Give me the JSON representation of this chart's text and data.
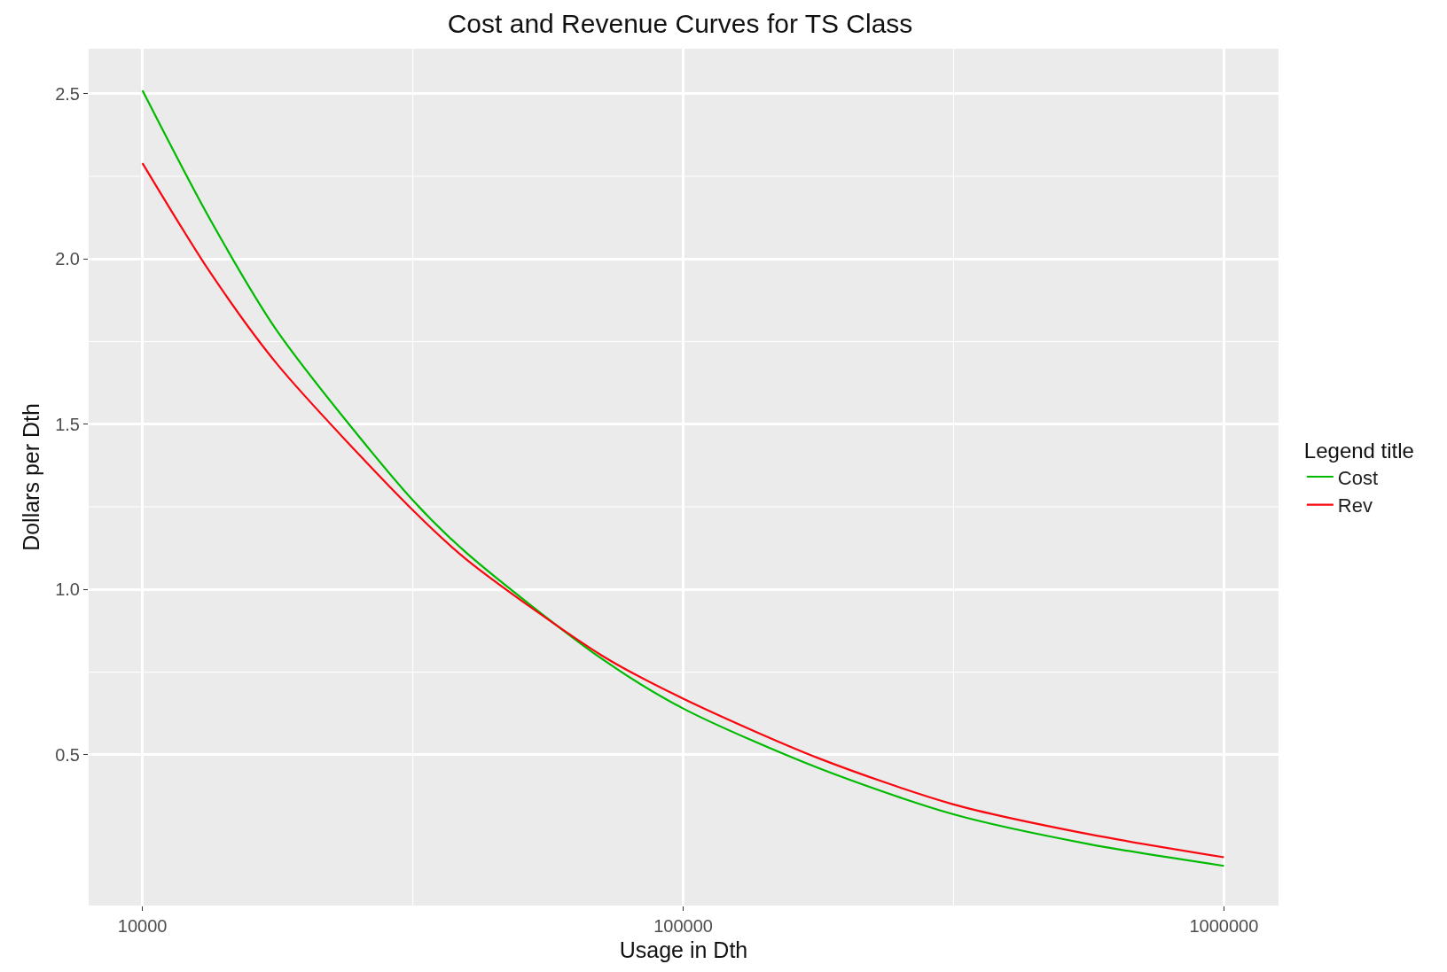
{
  "chart_data": {
    "type": "line",
    "title": "Cost and Revenue Curves for TS Class",
    "xlabel": "Usage in Dth",
    "ylabel": "Dollars per Dth",
    "legend_title": "Legend title",
    "log": "x",
    "x": [
      10000,
      13335,
      17783,
      31623,
      39811,
      70795,
      100000,
      177828,
      316228,
      562341,
      1000000
    ],
    "series": [
      {
        "name": "Cost",
        "color": "#00ba00",
        "values": [
          2.51,
          2.12,
          1.78,
          1.27,
          1.11,
          0.79,
          0.64,
          0.46,
          0.32,
          0.23,
          0.164
        ]
      },
      {
        "name": "Rev",
        "color": "#f8070f",
        "values": [
          2.29,
          1.96,
          1.68,
          1.24,
          1.09,
          0.8,
          0.67,
          0.49,
          0.35,
          0.26,
          0.19
        ]
      }
    ],
    "xlim": [
      7953,
      1262000
    ],
    "xticks": [
      10000,
      100000,
      1000000
    ],
    "ylim": [
      0.044,
      2.636
    ],
    "yticks": [
      {
        "value": 0.5,
        "label": "0.5"
      },
      {
        "value": 1,
        "label": "1.0"
      },
      {
        "value": 1.5,
        "label": "1.5"
      },
      {
        "value": 2,
        "label": "2.0"
      },
      {
        "value": 2.5,
        "label": "2.5"
      }
    ],
    "grid": true,
    "legend": "right",
    "line_style": "solid",
    "marker": "none"
  }
}
